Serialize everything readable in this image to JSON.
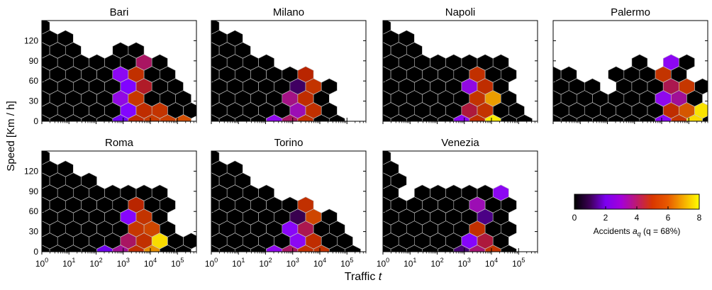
{
  "chart_data": {
    "type": "heatmap",
    "hexbin": true,
    "panels": [
      {
        "title": "Bari",
        "mask": [
          "X.........",
          "XX........",
          "XXX..XX...",
          "XXXXXXXX..",
          "XXXXXXXXX.",
          "XXXXXXXXX.",
          "XXXXXXXXXX",
          "XXXXXXXXXX",
          "XXXXXXXXXX",
          "XXXXXXXXXXX",
          "XXXXXXXXXXX"
        ],
        "colored": [
          {
            "r": 3,
            "c": 6,
            "v": 3.5
          },
          {
            "r": 4,
            "c": 5,
            "v": 2.4
          },
          {
            "r": 4,
            "c": 6,
            "v": 4.6
          },
          {
            "r": 5,
            "c": 5,
            "v": 2.0
          },
          {
            "r": 5,
            "c": 6,
            "v": 3.8
          },
          {
            "r": 6,
            "c": 5,
            "v": 2.6
          },
          {
            "r": 6,
            "c": 6,
            "v": 4.8
          },
          {
            "r": 7,
            "c": 5,
            "v": 2.1
          },
          {
            "r": 7,
            "c": 6,
            "v": 4.5
          },
          {
            "r": 7,
            "c": 7,
            "v": 4.7
          },
          {
            "r": 8,
            "c": 5,
            "v": 1.6
          },
          {
            "r": 8,
            "c": 6,
            "v": 4.4
          },
          {
            "r": 8,
            "c": 7,
            "v": 4.9
          },
          {
            "r": 8,
            "c": 8,
            "v": 5.0
          },
          {
            "r": 8,
            "c": 9,
            "v": 5.4
          },
          {
            "r": 9,
            "c": 4,
            "v": 2.0
          },
          {
            "r": 9,
            "c": 5,
            "v": 3.4
          },
          {
            "r": 9,
            "c": 6,
            "v": 4.6
          },
          {
            "r": 9,
            "c": 7,
            "v": 4.8
          },
          {
            "r": 9,
            "c": 8,
            "v": 4.6
          },
          {
            "r": 10,
            "c": 5,
            "v": 2.2
          },
          {
            "r": 10,
            "c": 6,
            "v": 4.1
          },
          {
            "r": 10,
            "c": 7,
            "v": 4.7
          }
        ]
      },
      {
        "title": "Milano",
        "mask": [
          "X.........",
          "XX........",
          "XXX.......",
          "XXXX......",
          "XXXXXXX...",
          "XXXXXXXX..",
          "XXXXXXXX..",
          "XXXXXXXX..",
          "XXXXXXXXX.",
          "XXXXXXXXX.",
          "XXXXXXXXX."
        ],
        "colored": [
          {
            "r": 4,
            "c": 6,
            "v": 4.2
          },
          {
            "r": 5,
            "c": 5,
            "v": 0.5
          },
          {
            "r": 5,
            "c": 6,
            "v": 4.7
          },
          {
            "r": 6,
            "c": 5,
            "v": 3.3
          },
          {
            "r": 6,
            "c": 6,
            "v": 4.5
          },
          {
            "r": 7,
            "c": 5,
            "v": 3.0
          },
          {
            "r": 7,
            "c": 6,
            "v": 4.6
          },
          {
            "r": 8,
            "c": 4,
            "v": 2.5
          },
          {
            "r": 8,
            "c": 5,
            "v": 3.5
          },
          {
            "r": 8,
            "c": 6,
            "v": 4.6
          },
          {
            "r": 9,
            "c": 4,
            "v": 0.5
          },
          {
            "r": 9,
            "c": 5,
            "v": 2.2
          },
          {
            "r": 9,
            "c": 6,
            "v": 4.4
          },
          {
            "r": 10,
            "c": 5,
            "v": 3.7
          },
          {
            "r": 10,
            "c": 6,
            "v": 4.6
          },
          {
            "r": 10,
            "c": 7,
            "v": 1.2
          }
        ]
      },
      {
        "title": "Napoli",
        "mask": [
          "X.........",
          "XX........",
          "XXX.......",
          "XXXXXXXX..",
          "XXXXXXXXX.",
          "XXXXXXXX..",
          "XXXXXXXXX.",
          "XXXXXXXXX.",
          "XXXXXXXXXX",
          "XXXXXXXXXX",
          "XXXXXXXXXX"
        ],
        "colored": [
          {
            "r": 4,
            "c": 6,
            "v": 4.6
          },
          {
            "r": 5,
            "c": 5,
            "v": 2.6
          },
          {
            "r": 5,
            "c": 6,
            "v": 4.5
          },
          {
            "r": 6,
            "c": 6,
            "v": 4.7
          },
          {
            "r": 6,
            "c": 7,
            "v": 6.8
          },
          {
            "r": 7,
            "c": 5,
            "v": 3.7
          },
          {
            "r": 7,
            "c": 6,
            "v": 4.7
          },
          {
            "r": 8,
            "c": 5,
            "v": 2.4
          },
          {
            "r": 8,
            "c": 6,
            "v": 4.5
          },
          {
            "r": 8,
            "c": 7,
            "v": 7.8
          },
          {
            "r": 9,
            "c": 5,
            "v": 3.8
          },
          {
            "r": 9,
            "c": 6,
            "v": 3.6
          },
          {
            "r": 9,
            "c": 7,
            "v": 4.9
          },
          {
            "r": 9,
            "c": 8,
            "v": 7.9
          },
          {
            "r": 10,
            "c": 5,
            "v": 3.8
          },
          {
            "r": 10,
            "c": 6,
            "v": 4.6
          }
        ]
      },
      {
        "title": "Palermo",
        "mask": [
          "..........",
          "..........",
          "..........",
          ".....X.XX.",
          "XX..XXXXX.",
          "XXX.XXXXXX",
          "XXXXXXXXXX",
          "XXXXXXXXXX",
          "XXXXXXXXXXX",
          "XXXXXXXXXX",
          "XXXXXXXXXX"
        ],
        "colored": [
          {
            "r": 3,
            "c": 7,
            "v": 2.4
          },
          {
            "r": 4,
            "c": 7,
            "v": 4.7
          },
          {
            "r": 5,
            "c": 7,
            "v": 3.6
          },
          {
            "r": 5,
            "c": 8,
            "v": 4.8
          },
          {
            "r": 6,
            "c": 7,
            "v": 2.5
          },
          {
            "r": 6,
            "c": 8,
            "v": 3.2
          },
          {
            "r": 7,
            "c": 7,
            "v": 4.5
          },
          {
            "r": 7,
            "c": 8,
            "v": 5.6
          },
          {
            "r": 7,
            "c": 9,
            "v": 7.7
          },
          {
            "r": 8,
            "c": 7,
            "v": 2.3
          },
          {
            "r": 8,
            "c": 8,
            "v": 4.7
          },
          {
            "r": 8,
            "c": 9,
            "v": 7.6
          },
          {
            "r": 9,
            "c": 7,
            "v": 4.6
          },
          {
            "r": 9,
            "c": 8,
            "v": 6.2
          },
          {
            "r": 10,
            "c": 7,
            "v": 3.8
          },
          {
            "r": 10,
            "c": 8,
            "v": 4.3
          },
          {
            "r": 10,
            "c": 9,
            "v": 7.6
          }
        ]
      },
      {
        "title": "Roma",
        "mask": [
          "X.........",
          "XX........",
          "XXXX......",
          "XXXXXXXX..",
          "XXXXXXXXX.",
          "XXXXXXXX..",
          "XXXXXXXXX.",
          "XXXXXXXXXX",
          "XXXXXXXXXX",
          "XXXXXXXXXX",
          "XXXXXXXXXX"
        ],
        "colored": [
          {
            "r": 4,
            "c": 6,
            "v": 4.2
          },
          {
            "r": 5,
            "c": 5,
            "v": 2.2
          },
          {
            "r": 5,
            "c": 6,
            "v": 4.7
          },
          {
            "r": 6,
            "c": 6,
            "v": 4.8
          },
          {
            "r": 6,
            "c": 7,
            "v": 5.2
          },
          {
            "r": 7,
            "c": 5,
            "v": 3.5
          },
          {
            "r": 7,
            "c": 6,
            "v": 4.6
          },
          {
            "r": 7,
            "c": 7,
            "v": 7.6
          },
          {
            "r": 8,
            "c": 4,
            "v": 1.5
          },
          {
            "r": 8,
            "c": 5,
            "v": 3.2
          },
          {
            "r": 8,
            "c": 6,
            "v": 4.5
          },
          {
            "r": 8,
            "c": 7,
            "v": 6.6
          },
          {
            "r": 9,
            "c": 5,
            "v": 2.3
          },
          {
            "r": 9,
            "c": 6,
            "v": 3.8
          },
          {
            "r": 9,
            "c": 7,
            "v": 4.9
          },
          {
            "r": 9,
            "c": 8,
            "v": 7.8
          },
          {
            "r": 10,
            "c": 5,
            "v": 0.8
          },
          {
            "r": 10,
            "c": 6,
            "v": 3.6
          }
        ]
      },
      {
        "title": "Torino",
        "mask": [
          "X.........",
          "XX........",
          "XXX.......",
          "XXXX......",
          "XXXXXXX...",
          "XXXXXXXX..",
          "XXXXXXXXX.",
          "XXXXXXXXX.",
          "XXXXXXXXXX",
          "XXXXXXXXXXX",
          "XXXXXXXXXX"
        ],
        "colored": [
          {
            "r": 4,
            "c": 6,
            "v": 4.6
          },
          {
            "r": 5,
            "c": 5,
            "v": 0.4
          },
          {
            "r": 5,
            "c": 6,
            "v": 5.2
          },
          {
            "r": 6,
            "c": 5,
            "v": 2.3
          },
          {
            "r": 6,
            "c": 6,
            "v": 3.6
          },
          {
            "r": 7,
            "c": 5,
            "v": 2.4
          },
          {
            "r": 7,
            "c": 6,
            "v": 4.5
          },
          {
            "r": 8,
            "c": 4,
            "v": 2.5
          },
          {
            "r": 8,
            "c": 5,
            "v": 3.5
          },
          {
            "r": 8,
            "c": 6,
            "v": 4.6
          },
          {
            "r": 8,
            "c": 7,
            "v": 4.7
          },
          {
            "r": 9,
            "c": 4,
            "v": 2.6
          },
          {
            "r": 9,
            "c": 5,
            "v": 3.2
          },
          {
            "r": 9,
            "c": 6,
            "v": 4.5
          },
          {
            "r": 9,
            "c": 7,
            "v": 6.9
          },
          {
            "r": 9,
            "c": 8,
            "v": 5.3
          },
          {
            "r": 10,
            "c": 5,
            "v": 2.4
          },
          {
            "r": 10,
            "c": 6,
            "v": 3.8
          }
        ]
      },
      {
        "title": "Venezia",
        "mask": [
          "X.........",
          "X.........",
          "XX........",
          "X.XXXXXX..",
          "XXXXXXXXX.",
          "XXXXXXXX..",
          "XXXXXXXXX.",
          "XXXXXXXX..",
          "XXXXXXXXX.",
          "XXXXXXXXXX",
          "XXXXXXXX.."
        ],
        "colored": [
          {
            "r": 3,
            "c": 7,
            "v": 2.4
          },
          {
            "r": 4,
            "c": 6,
            "v": 3.0
          },
          {
            "r": 5,
            "c": 6,
            "v": 0.7
          },
          {
            "r": 6,
            "c": 6,
            "v": 4.6
          },
          {
            "r": 7,
            "c": 5,
            "v": 2.2
          },
          {
            "r": 7,
            "c": 6,
            "v": 3.7
          },
          {
            "r": 8,
            "c": 5,
            "v": 0.6
          },
          {
            "r": 8,
            "c": 6,
            "v": 3.4
          },
          {
            "r": 8,
            "c": 7,
            "v": 4.7
          },
          {
            "r": 9,
            "c": 5,
            "v": 2.1
          },
          {
            "r": 9,
            "c": 6,
            "v": 3.8
          },
          {
            "r": 9,
            "c": 7,
            "v": 4.7
          },
          {
            "r": 10,
            "c": 5,
            "v": 1.5
          },
          {
            "r": 10,
            "c": 6,
            "v": 4.6
          }
        ]
      }
    ],
    "xlabel": "Traffic t",
    "ylabel": "Speed [Km / h]",
    "xscale": "log",
    "xlim": [
      1,
      500000
    ],
    "ylim": [
      0,
      150
    ],
    "xticks": [
      {
        "value": 1,
        "base": "10",
        "exp": "0"
      },
      {
        "value": 10,
        "base": "10",
        "exp": "1"
      },
      {
        "value": 100,
        "base": "10",
        "exp": "2"
      },
      {
        "value": 1000,
        "base": "10",
        "exp": "3"
      },
      {
        "value": 10000,
        "base": "10",
        "exp": "4"
      },
      {
        "value": 100000,
        "base": "10",
        "exp": "5"
      }
    ],
    "yticks": [
      0,
      30,
      60,
      90,
      120
    ],
    "grid": false,
    "empty_color": "#000000",
    "edge_color": "#c8c8c8",
    "colorbar": {
      "min": 0,
      "max": 8,
      "ticks": [
        0,
        2,
        4,
        6,
        8
      ],
      "label": "Accidents a",
      "label_sub": "q",
      "label_tail": " (q = 68%)",
      "colormap": "gnuplot",
      "placement": "right"
    }
  }
}
